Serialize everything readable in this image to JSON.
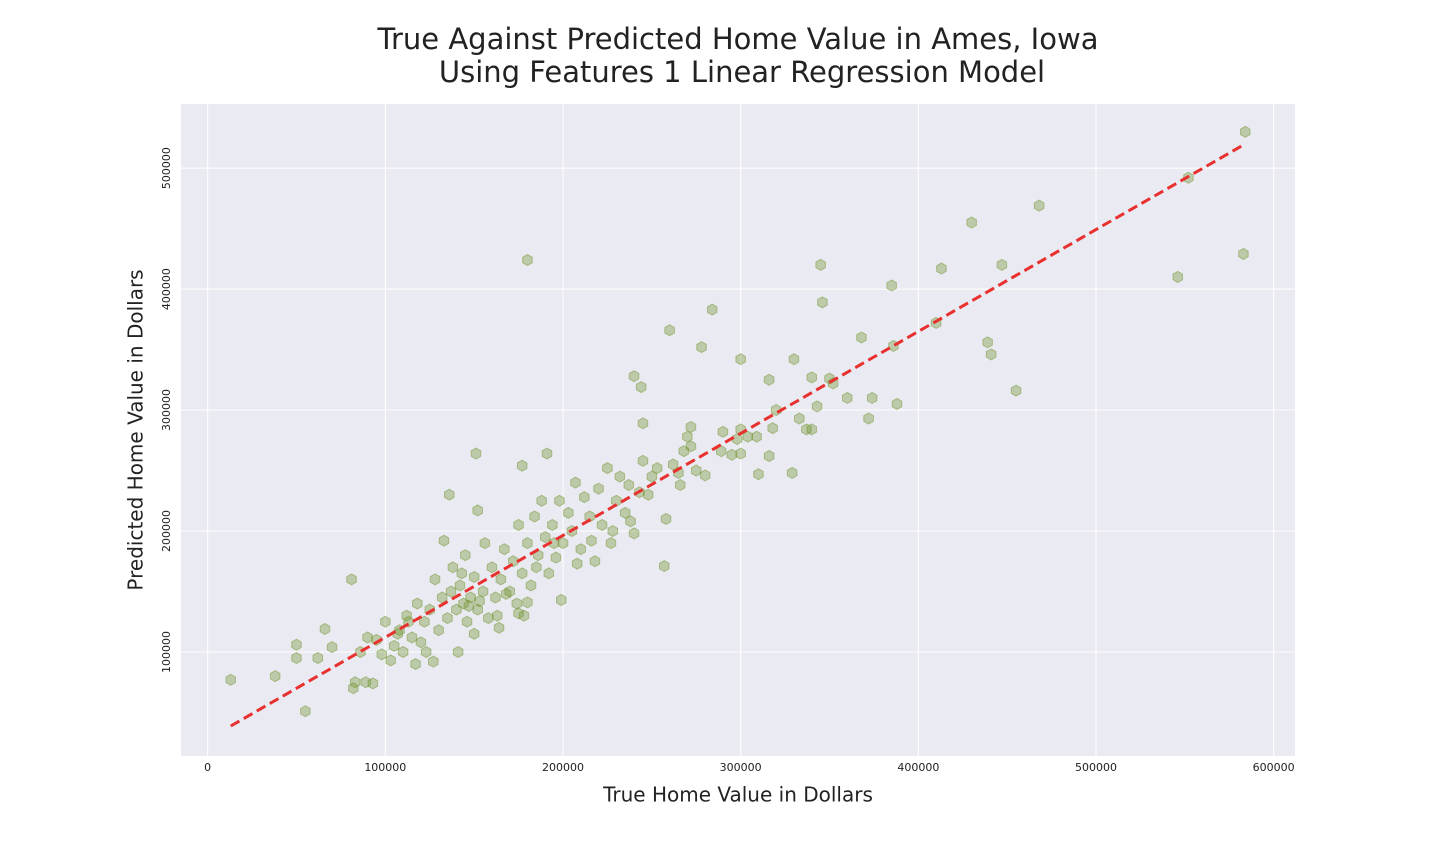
{
  "chart_data": {
    "type": "scatter",
    "title": [
      "True Against Predicted Home Value in Ames, Iowa",
      "Using Features 1 Linear Regression Model"
    ],
    "x_label": "True Home Value in Dollars",
    "y_label": "Predicted Home Value in Dollars",
    "xlim": [
      -15000,
      612000
    ],
    "ylim": [
      14000,
      553000
    ],
    "xticks": [
      0,
      100000,
      200000,
      300000,
      400000,
      500000,
      600000
    ],
    "yticks": [
      100000,
      200000,
      300000,
      400000,
      500000
    ],
    "grid": true,
    "color": "#6b8e23",
    "x": [
      13000,
      38000,
      55000,
      50000,
      50000,
      62000,
      66000,
      70000,
      81000,
      82000,
      83000,
      89000,
      93000,
      180000,
      151000,
      136000,
      152000,
      177000,
      191000,
      260000,
      284000,
      278000,
      300000,
      240000,
      244000,
      245000,
      345000,
      346000,
      330000,
      316000,
      430000,
      468000,
      447000,
      413000,
      385000,
      552000,
      584000,
      583000,
      546000,
      368000,
      386000,
      410000,
      439000,
      441000,
      455000,
      360000,
      374000,
      372000,
      388000,
      340000,
      350000,
      352000,
      343000,
      333000,
      337000,
      340000,
      320000,
      318000,
      310000,
      329000,
      316000,
      300000,
      298000,
      304000,
      309000,
      295000,
      300000,
      290000,
      289000,
      272000,
      270000,
      272000,
      268000,
      275000,
      280000,
      265000,
      262000,
      266000,
      257000,
      258000,
      199000,
      175000,
      180000,
      90000,
      95000,
      100000,
      105000,
      108000,
      110000,
      112000,
      115000,
      118000,
      120000,
      122000,
      125000,
      127000,
      128000,
      130000,
      132000,
      133000,
      135000,
      137000,
      138000,
      140000,
      141000,
      142000,
      144000,
      145000,
      146000,
      148000,
      150000,
      150000,
      152000,
      155000,
      156000,
      158000,
      160000,
      162000,
      164000,
      165000,
      167000,
      170000,
      172000,
      174000,
      175000,
      177000,
      180000,
      182000,
      184000,
      186000,
      188000,
      190000,
      192000,
      194000,
      196000,
      198000,
      200000,
      203000,
      205000,
      207000,
      210000,
      212000,
      215000,
      218000,
      220000,
      222000,
      225000,
      227000,
      230000,
      232000,
      235000,
      237000,
      240000,
      243000,
      245000,
      248000,
      250000,
      253000,
      86000,
      98000,
      103000,
      107000,
      113000,
      117000,
      123000,
      143000,
      147000,
      153000,
      163000,
      168000,
      178000,
      185000,
      195000,
      208000,
      216000,
      228000,
      238000
    ],
    "values": [
      77000,
      80000,
      51000,
      106000,
      95000,
      95000,
      119000,
      104000,
      160000,
      70000,
      75000,
      75000,
      74000,
      424000,
      264000,
      230000,
      217000,
      254000,
      264000,
      366000,
      383000,
      352000,
      342000,
      328000,
      319000,
      289000,
      420000,
      389000,
      342000,
      325000,
      455000,
      469000,
      420000,
      417000,
      403000,
      492000,
      530000,
      429000,
      410000,
      360000,
      353000,
      372000,
      356000,
      346000,
      316000,
      310000,
      310000,
      293000,
      305000,
      327000,
      326000,
      322000,
      303000,
      293000,
      284000,
      284000,
      300000,
      285000,
      247000,
      248000,
      262000,
      284000,
      276000,
      278000,
      278000,
      263000,
      264000,
      282000,
      266000,
      286000,
      278000,
      270000,
      266000,
      250000,
      246000,
      248000,
      255000,
      238000,
      171000,
      210000,
      143000,
      132000,
      141000,
      112000,
      110000,
      125000,
      105000,
      118000,
      100000,
      130000,
      112000,
      140000,
      108000,
      125000,
      135000,
      92000,
      160000,
      118000,
      145000,
      192000,
      128000,
      150000,
      170000,
      135000,
      100000,
      155000,
      140000,
      180000,
      125000,
      145000,
      162000,
      115000,
      135000,
      150000,
      190000,
      128000,
      170000,
      145000,
      120000,
      160000,
      185000,
      150000,
      175000,
      140000,
      205000,
      165000,
      190000,
      155000,
      212000,
      180000,
      225000,
      195000,
      165000,
      205000,
      178000,
      225000,
      190000,
      215000,
      200000,
      240000,
      185000,
      228000,
      212000,
      175000,
      235000,
      205000,
      252000,
      190000,
      225000,
      245000,
      215000,
      238000,
      198000,
      232000,
      258000,
      230000,
      245000,
      252000,
      100000,
      98000,
      93000,
      115000,
      125000,
      90000,
      100000,
      165000,
      138000,
      142000,
      130000,
      148000,
      130000,
      170000,
      190000,
      173000,
      192000,
      200000,
      208000
    ],
    "fit_line": {
      "x": [
        13000,
        584000
      ],
      "y": [
        38800,
        520000
      ],
      "color": "#e8302e"
    }
  }
}
